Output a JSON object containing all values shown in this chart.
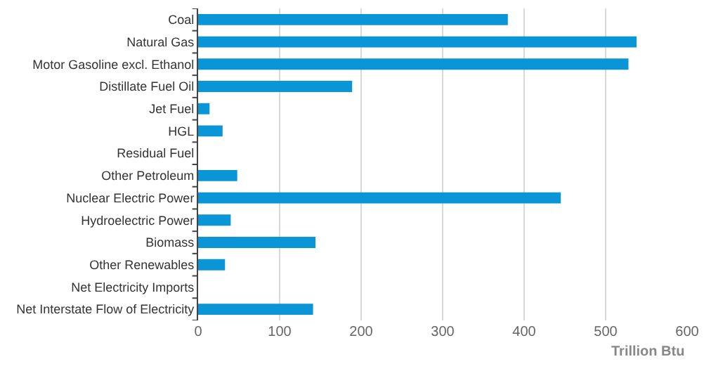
{
  "chart_data": {
    "type": "bar",
    "orientation": "horizontal",
    "xlabel": "Trillion Btu",
    "categories": [
      "Coal",
      "Natural Gas",
      "Motor Gasoline excl. Ethanol",
      "Distillate Fuel Oil",
      "Jet Fuel",
      "HGL",
      "Residual Fuel",
      "Other Petroleum",
      "Nuclear Electric Power",
      "Hydroelectric Power",
      "Biomass",
      "Other Renewables",
      "Net Electricity Imports",
      "Net Interstate Flow of Electricity"
    ],
    "values": [
      380,
      538,
      528,
      189,
      14,
      30,
      0,
      48,
      445,
      40,
      144,
      33,
      0,
      141
    ],
    "color": "#0a96d6",
    "xlim": [
      0,
      600
    ],
    "xticks": [
      0,
      100,
      200,
      300,
      400,
      500,
      600
    ],
    "grid": "x"
  }
}
